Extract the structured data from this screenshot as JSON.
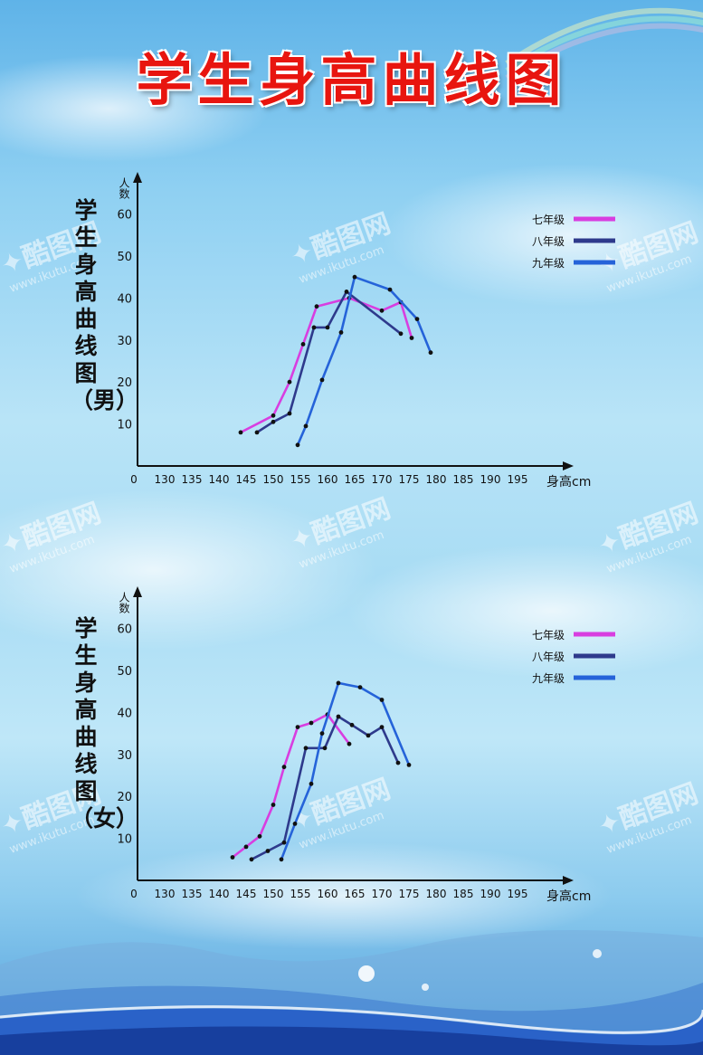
{
  "poster": {
    "title": "学生身高曲线图",
    "side_titles": [
      "学生身高曲线图（男）",
      "学生身高曲线图（女）"
    ]
  },
  "colors": {
    "grade7": "#d83ee0",
    "grade8": "#2e3a8c",
    "grade9": "#2563d9",
    "title_red": "#e8150f",
    "axis": "#111111"
  },
  "chart_data": [
    {
      "type": "line",
      "title": "学生身高曲线图（男）",
      "xlabel": "身高cm",
      "ylabel": "人数",
      "x_ticks": [
        "0",
        "130",
        "135",
        "140",
        "145",
        "150",
        "155",
        "160",
        "165",
        "170",
        "175",
        "180",
        "185",
        "190",
        "195"
      ],
      "y_ticks": [
        10,
        20,
        30,
        40,
        50,
        60
      ],
      "xlim": [
        125,
        200
      ],
      "ylim": [
        0,
        62
      ],
      "legend_position": "top-right",
      "series": [
        {
          "name": "七年级",
          "color_key": "grade7",
          "points": [
            [
              144,
              8
            ],
            [
              150,
              12
            ],
            [
              153,
              20
            ],
            [
              155.5,
              29
            ],
            [
              158,
              38
            ],
            [
              164,
              40
            ],
            [
              170,
              37
            ],
            [
              173.5,
              39
            ],
            [
              175.5,
              30.5
            ]
          ]
        },
        {
          "name": "八年级",
          "color_key": "grade8",
          "points": [
            [
              147,
              8
            ],
            [
              150,
              10.5
            ],
            [
              153,
              12.5
            ],
            [
              157.5,
              33
            ],
            [
              160,
              33
            ],
            [
              163.5,
              41.5
            ],
            [
              173.5,
              31.5
            ]
          ]
        },
        {
          "name": "九年级",
          "color_key": "grade9",
          "points": [
            [
              154.5,
              5
            ],
            [
              156,
              9.5
            ],
            [
              159,
              20.5
            ],
            [
              162.5,
              31.8
            ],
            [
              165,
              45
            ],
            [
              171.5,
              42
            ],
            [
              176.5,
              35
            ],
            [
              179,
              27
            ]
          ]
        }
      ]
    },
    {
      "type": "line",
      "title": "学生身高曲线图（女）",
      "xlabel": "身高cm",
      "ylabel": "人数",
      "x_ticks": [
        "0",
        "130",
        "135",
        "140",
        "145",
        "150",
        "155",
        "160",
        "165",
        "170",
        "175",
        "180",
        "185",
        "190",
        "195"
      ],
      "y_ticks": [
        10,
        20,
        30,
        40,
        50,
        60
      ],
      "xlim": [
        125,
        200
      ],
      "ylim": [
        0,
        62
      ],
      "legend_position": "top-right",
      "series": [
        {
          "name": "七年级",
          "color_key": "grade7",
          "points": [
            [
              142.5,
              5.5
            ],
            [
              145,
              8
            ],
            [
              147.5,
              10.5
            ],
            [
              150,
              18
            ],
            [
              152,
              27
            ],
            [
              154.5,
              36.5
            ],
            [
              157,
              37.5
            ],
            [
              160,
              39.5
            ],
            [
              164,
              32.5
            ]
          ]
        },
        {
          "name": "八年级",
          "color_key": "grade8",
          "points": [
            [
              146,
              5
            ],
            [
              149,
              7
            ],
            [
              152,
              9
            ],
            [
              156,
              31.5
            ],
            [
              159.5,
              31.5
            ],
            [
              162,
              39
            ],
            [
              164.5,
              37
            ],
            [
              167.5,
              34.5
            ],
            [
              170,
              36.5
            ],
            [
              173,
              28
            ]
          ]
        },
        {
          "name": "九年级",
          "color_key": "grade9",
          "points": [
            [
              151.5,
              5
            ],
            [
              154,
              13.5
            ],
            [
              157,
              23
            ],
            [
              159,
              35
            ],
            [
              162,
              47
            ],
            [
              166,
              46
            ],
            [
              170,
              43
            ],
            [
              175,
              27.5
            ]
          ]
        }
      ]
    }
  ]
}
